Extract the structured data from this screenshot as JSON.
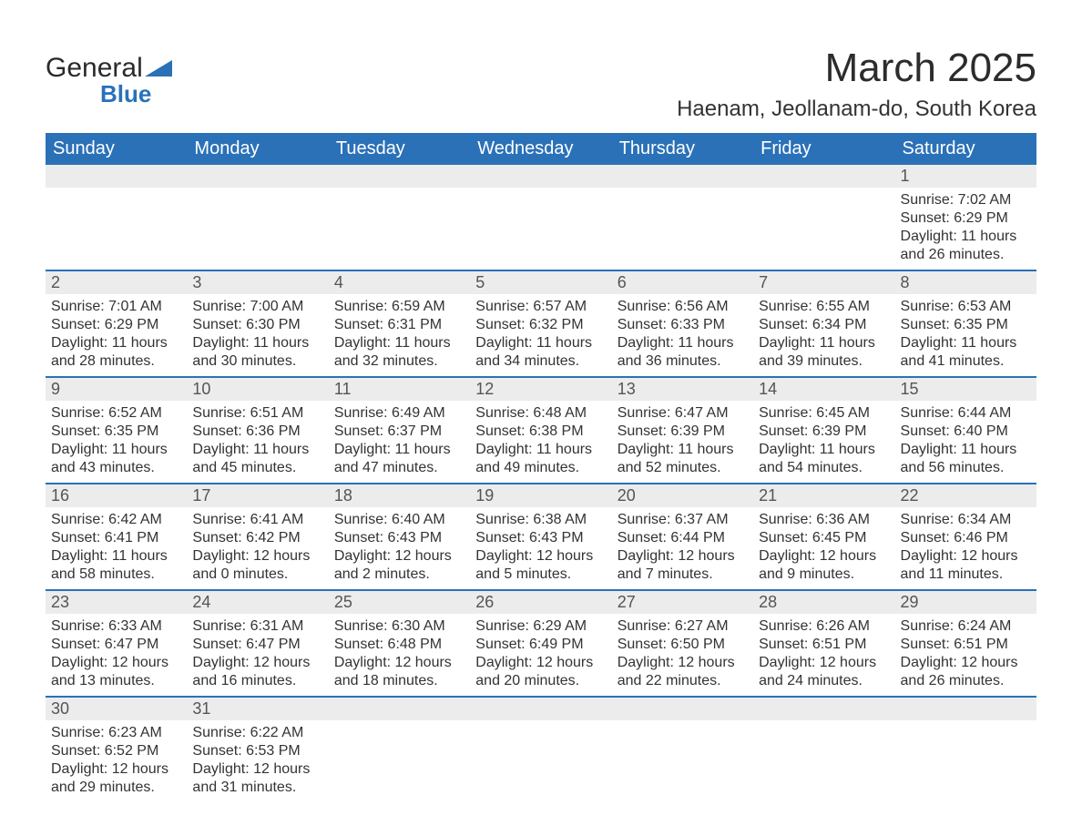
{
  "brand": {
    "word1": "General",
    "word2": "Blue",
    "accent": "#2a71b8"
  },
  "title": "March 2025",
  "location": "Haenam, Jeollanam-do, South Korea",
  "weekdays": [
    "Sunday",
    "Monday",
    "Tuesday",
    "Wednesday",
    "Thursday",
    "Friday",
    "Saturday"
  ],
  "style": {
    "header_bg": "#2a71b8",
    "header_fg": "#ffffff",
    "daynum_bg": "#ececec",
    "row_divider": "#2a71b8",
    "title_fontsize": 44,
    "location_fontsize": 24,
    "weekday_fontsize": 20,
    "daynum_fontsize": 18,
    "cell_fontsize": 16
  },
  "weeks": [
    [
      null,
      null,
      null,
      null,
      null,
      null,
      {
        "n": "1",
        "sunrise": "Sunrise: 7:02 AM",
        "sunset": "Sunset: 6:29 PM",
        "daylight": "Daylight: 11 hours and 26 minutes."
      }
    ],
    [
      {
        "n": "2",
        "sunrise": "Sunrise: 7:01 AM",
        "sunset": "Sunset: 6:29 PM",
        "daylight": "Daylight: 11 hours and 28 minutes."
      },
      {
        "n": "3",
        "sunrise": "Sunrise: 7:00 AM",
        "sunset": "Sunset: 6:30 PM",
        "daylight": "Daylight: 11 hours and 30 minutes."
      },
      {
        "n": "4",
        "sunrise": "Sunrise: 6:59 AM",
        "sunset": "Sunset: 6:31 PM",
        "daylight": "Daylight: 11 hours and 32 minutes."
      },
      {
        "n": "5",
        "sunrise": "Sunrise: 6:57 AM",
        "sunset": "Sunset: 6:32 PM",
        "daylight": "Daylight: 11 hours and 34 minutes."
      },
      {
        "n": "6",
        "sunrise": "Sunrise: 6:56 AM",
        "sunset": "Sunset: 6:33 PM",
        "daylight": "Daylight: 11 hours and 36 minutes."
      },
      {
        "n": "7",
        "sunrise": "Sunrise: 6:55 AM",
        "sunset": "Sunset: 6:34 PM",
        "daylight": "Daylight: 11 hours and 39 minutes."
      },
      {
        "n": "8",
        "sunrise": "Sunrise: 6:53 AM",
        "sunset": "Sunset: 6:35 PM",
        "daylight": "Daylight: 11 hours and 41 minutes."
      }
    ],
    [
      {
        "n": "9",
        "sunrise": "Sunrise: 6:52 AM",
        "sunset": "Sunset: 6:35 PM",
        "daylight": "Daylight: 11 hours and 43 minutes."
      },
      {
        "n": "10",
        "sunrise": "Sunrise: 6:51 AM",
        "sunset": "Sunset: 6:36 PM",
        "daylight": "Daylight: 11 hours and 45 minutes."
      },
      {
        "n": "11",
        "sunrise": "Sunrise: 6:49 AM",
        "sunset": "Sunset: 6:37 PM",
        "daylight": "Daylight: 11 hours and 47 minutes."
      },
      {
        "n": "12",
        "sunrise": "Sunrise: 6:48 AM",
        "sunset": "Sunset: 6:38 PM",
        "daylight": "Daylight: 11 hours and 49 minutes."
      },
      {
        "n": "13",
        "sunrise": "Sunrise: 6:47 AM",
        "sunset": "Sunset: 6:39 PM",
        "daylight": "Daylight: 11 hours and 52 minutes."
      },
      {
        "n": "14",
        "sunrise": "Sunrise: 6:45 AM",
        "sunset": "Sunset: 6:39 PM",
        "daylight": "Daylight: 11 hours and 54 minutes."
      },
      {
        "n": "15",
        "sunrise": "Sunrise: 6:44 AM",
        "sunset": "Sunset: 6:40 PM",
        "daylight": "Daylight: 11 hours and 56 minutes."
      }
    ],
    [
      {
        "n": "16",
        "sunrise": "Sunrise: 6:42 AM",
        "sunset": "Sunset: 6:41 PM",
        "daylight": "Daylight: 11 hours and 58 minutes."
      },
      {
        "n": "17",
        "sunrise": "Sunrise: 6:41 AM",
        "sunset": "Sunset: 6:42 PM",
        "daylight": "Daylight: 12 hours and 0 minutes."
      },
      {
        "n": "18",
        "sunrise": "Sunrise: 6:40 AM",
        "sunset": "Sunset: 6:43 PM",
        "daylight": "Daylight: 12 hours and 2 minutes."
      },
      {
        "n": "19",
        "sunrise": "Sunrise: 6:38 AM",
        "sunset": "Sunset: 6:43 PM",
        "daylight": "Daylight: 12 hours and 5 minutes."
      },
      {
        "n": "20",
        "sunrise": "Sunrise: 6:37 AM",
        "sunset": "Sunset: 6:44 PM",
        "daylight": "Daylight: 12 hours and 7 minutes."
      },
      {
        "n": "21",
        "sunrise": "Sunrise: 6:36 AM",
        "sunset": "Sunset: 6:45 PM",
        "daylight": "Daylight: 12 hours and 9 minutes."
      },
      {
        "n": "22",
        "sunrise": "Sunrise: 6:34 AM",
        "sunset": "Sunset: 6:46 PM",
        "daylight": "Daylight: 12 hours and 11 minutes."
      }
    ],
    [
      {
        "n": "23",
        "sunrise": "Sunrise: 6:33 AM",
        "sunset": "Sunset: 6:47 PM",
        "daylight": "Daylight: 12 hours and 13 minutes."
      },
      {
        "n": "24",
        "sunrise": "Sunrise: 6:31 AM",
        "sunset": "Sunset: 6:47 PM",
        "daylight": "Daylight: 12 hours and 16 minutes."
      },
      {
        "n": "25",
        "sunrise": "Sunrise: 6:30 AM",
        "sunset": "Sunset: 6:48 PM",
        "daylight": "Daylight: 12 hours and 18 minutes."
      },
      {
        "n": "26",
        "sunrise": "Sunrise: 6:29 AM",
        "sunset": "Sunset: 6:49 PM",
        "daylight": "Daylight: 12 hours and 20 minutes."
      },
      {
        "n": "27",
        "sunrise": "Sunrise: 6:27 AM",
        "sunset": "Sunset: 6:50 PM",
        "daylight": "Daylight: 12 hours and 22 minutes."
      },
      {
        "n": "28",
        "sunrise": "Sunrise: 6:26 AM",
        "sunset": "Sunset: 6:51 PM",
        "daylight": "Daylight: 12 hours and 24 minutes."
      },
      {
        "n": "29",
        "sunrise": "Sunrise: 6:24 AM",
        "sunset": "Sunset: 6:51 PM",
        "daylight": "Daylight: 12 hours and 26 minutes."
      }
    ],
    [
      {
        "n": "30",
        "sunrise": "Sunrise: 6:23 AM",
        "sunset": "Sunset: 6:52 PM",
        "daylight": "Daylight: 12 hours and 29 minutes."
      },
      {
        "n": "31",
        "sunrise": "Sunrise: 6:22 AM",
        "sunset": "Sunset: 6:53 PM",
        "daylight": "Daylight: 12 hours and 31 minutes."
      },
      null,
      null,
      null,
      null,
      null
    ]
  ]
}
